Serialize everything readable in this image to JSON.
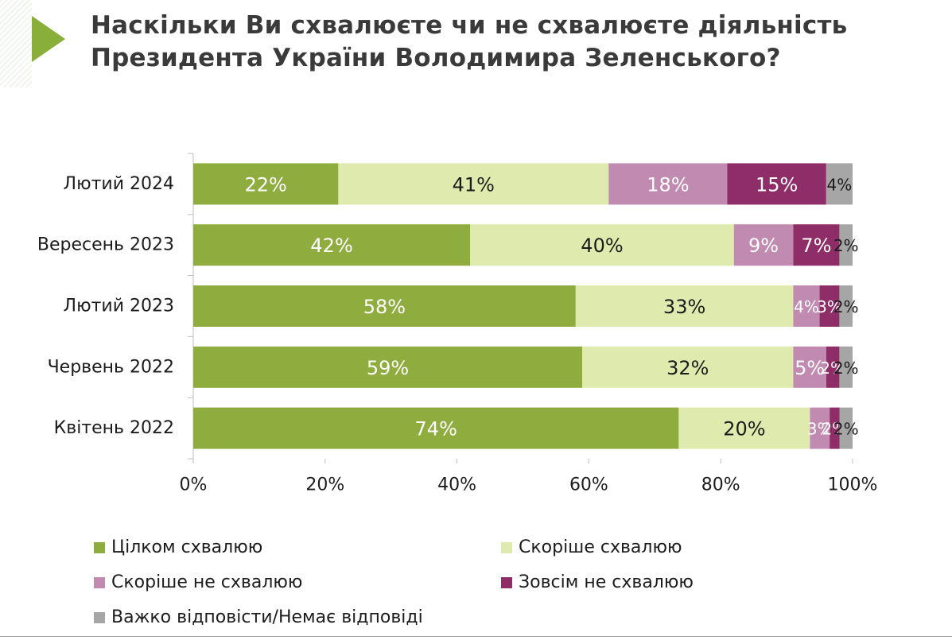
{
  "title": {
    "line1": "Наскільки Ви схвалюєте чи не схвалюєте діяльність",
    "line2": "Президента України Володимира Зеленського?"
  },
  "colors": {
    "title_arrow": "#8aae3a",
    "axis": "#bdbdbd"
  },
  "chart_data": {
    "type": "bar",
    "orientation": "horizontal",
    "stacked": true,
    "categories": [
      "Лютий 2024",
      "Вересень 2023",
      "Лютий 2023",
      "Червень 2022",
      "Квітень 2022"
    ],
    "series": [
      {
        "name": "Цілком схвалюю",
        "color": "#8fac3e",
        "label_color": "#ffffff",
        "values": [
          22,
          42,
          58,
          59,
          74
        ],
        "labels": [
          "22%",
          "42%",
          "58%",
          "59%",
          "74%"
        ]
      },
      {
        "name": "Скоріше схвалюю",
        "color": "#dfeaae",
        "label_color": "#1c1c1c",
        "values": [
          41,
          40,
          33,
          32,
          20
        ],
        "labels": [
          "41%",
          "40%",
          "33%",
          "32%",
          "20%"
        ]
      },
      {
        "name": "Скоріше не схвалюю",
        "color": "#c08ab1",
        "label_color": "#ffffff",
        "values": [
          18,
          9,
          4,
          5,
          3
        ],
        "labels": [
          "18%",
          "9%",
          "4%",
          "5%",
          "3%"
        ]
      },
      {
        "name": "Зовсім не схвалюю",
        "color": "#8e2d67",
        "label_color": "#ffffff",
        "values": [
          15,
          7,
          3,
          2,
          1.5
        ],
        "labels": [
          "15%",
          "7%",
          "3%",
          "2%",
          "2%"
        ]
      },
      {
        "name": "Важко відповісти/Немає відповіді",
        "color": "#a6a6a6",
        "label_color": "#1c1c1c",
        "values": [
          4,
          2,
          2,
          2,
          2
        ],
        "labels": [
          "4%",
          "2%",
          "2%",
          "2%",
          "2%"
        ]
      }
    ],
    "xlim": [
      0,
      100
    ],
    "xticks": [
      "0%",
      "20%",
      "40%",
      "60%",
      "80%",
      "100%"
    ],
    "xlabel": "",
    "ylabel": "",
    "grid": false,
    "legend_position": "bottom"
  }
}
